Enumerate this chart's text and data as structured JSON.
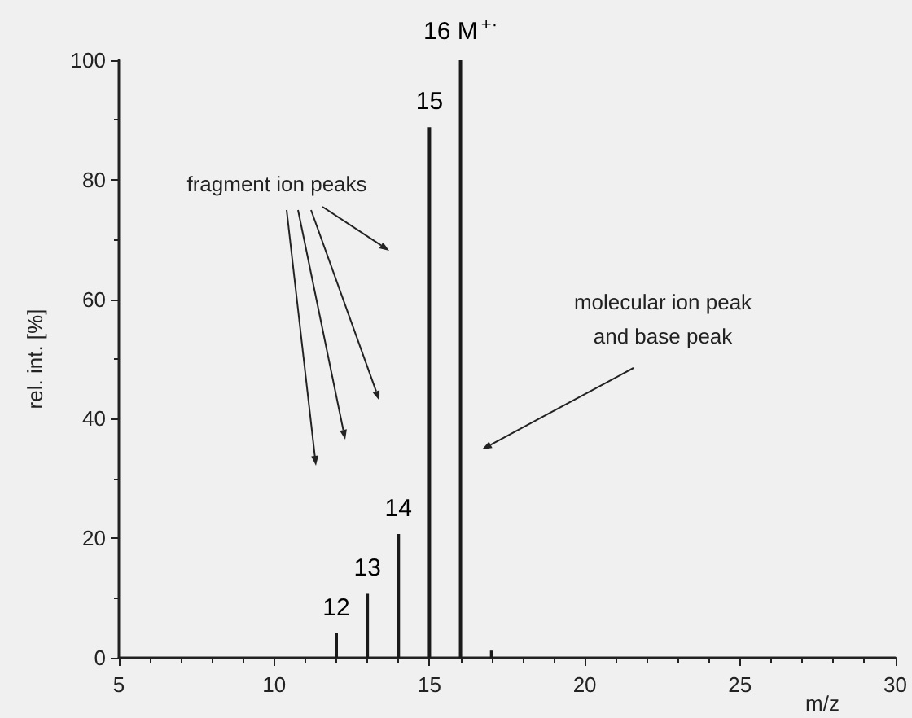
{
  "chart_data": {
    "type": "bar",
    "x": [
      12,
      13,
      14,
      15,
      16,
      17
    ],
    "values": [
      4.1,
      10.7,
      20.7,
      88.8,
      100,
      1.2
    ],
    "color": "#1a1a1a",
    "xlabel": "m/z",
    "ylabel": "rel. int. [%]",
    "xlim": [
      5,
      30
    ],
    "xticks": [
      5,
      10,
      15,
      20,
      25,
      30
    ],
    "ylim": [
      0,
      100
    ],
    "yticks": [
      0,
      20,
      40,
      60,
      80,
      100
    ],
    "grid": false,
    "annotations": [
      "fragment ion peaks",
      "molecular ion peak\nand base peak",
      {
        "text": "12",
        "x": 12,
        "y": 4.1
      },
      {
        "text": "13",
        "x": 13,
        "y": 10.7
      },
      {
        "text": "14",
        "x": 14,
        "y": 20.7
      },
      {
        "text": "15",
        "x": 15,
        "y": 88.8
      },
      {
        "text": "16 M$^{+·}$",
        "x": 16,
        "y": 100
      }
    ]
  }
}
